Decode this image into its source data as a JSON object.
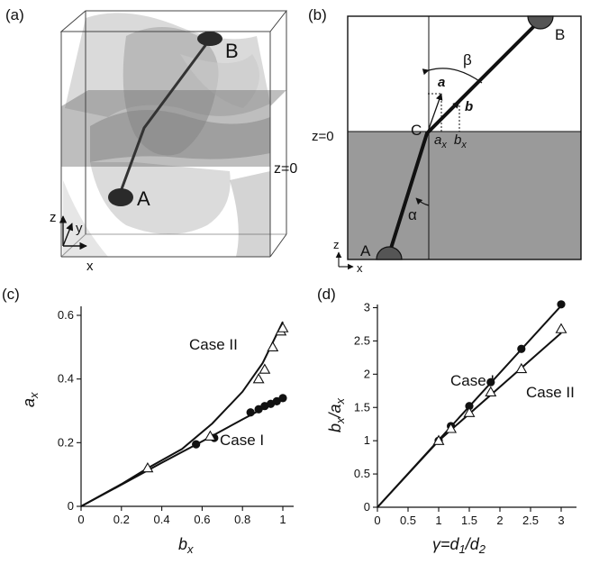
{
  "panels": {
    "a": {
      "label": "(a)",
      "point_a": "A",
      "point_b": "B",
      "plane_label": "z=0",
      "axis_z": "z",
      "axis_y": "y",
      "axis_x": "x"
    },
    "b": {
      "label": "(b)",
      "point_a": "A",
      "point_b": "B",
      "point_c": "C",
      "beta": "β",
      "alpha": "α",
      "vec_a": "a",
      "vec_b": "b",
      "ax_label": "a",
      "ax_sub": "x",
      "bx_label": "b",
      "bx_sub": "x",
      "plane_label": "z=0",
      "axis_z": "z",
      "axis_x": "x"
    },
    "c": {
      "label": "(c)",
      "case1": "Case I",
      "case2": "Case II",
      "ylabel_main": "a",
      "ylabel_sub": "x",
      "xlabel_main": "b",
      "xlabel_sub": "x"
    },
    "d": {
      "label": "(d)",
      "case1": "Case I",
      "case2": "Case II",
      "ylabel": "b",
      "ylabel_sub": "x",
      "ylabel_slash": "/a",
      "ylabel_sub2": "x",
      "xlabel": "γ=d",
      "xlabel_sub": "1",
      "xlabel_slash": "/d",
      "xlabel_sub2": "2"
    }
  },
  "chart_data": [
    {
      "type": "scatter",
      "panel": "(c)",
      "xlabel": "b_x",
      "ylabel": "a_x",
      "xlim": [
        0,
        1
      ],
      "ylim": [
        0,
        0.6
      ],
      "x_ticks": [
        "0",
        "0.2",
        "0.4",
        "0.6",
        "0.8",
        "1"
      ],
      "y_ticks": [
        "0",
        "0.2",
        "0.4",
        "0.6"
      ],
      "series": [
        {
          "name": "Case I",
          "marker": "filled-circle",
          "x": [
            0.57,
            0.66,
            0.84,
            0.88,
            0.91,
            0.94,
            0.97,
            1.0
          ],
          "y": [
            0.195,
            0.215,
            0.295,
            0.305,
            0.315,
            0.322,
            0.33,
            0.34
          ]
        },
        {
          "name": "Case II",
          "marker": "open-triangle",
          "x": [
            0.33,
            0.64,
            0.88,
            0.91,
            0.95,
            0.99,
            1.0
          ],
          "y": [
            0.12,
            0.22,
            0.4,
            0.43,
            0.5,
            0.55,
            0.56
          ]
        }
      ],
      "fits": [
        {
          "for": "Case I",
          "x": [
            0,
            0.2,
            0.4,
            0.6,
            0.8,
            1.0
          ],
          "y": [
            0,
            0.068,
            0.137,
            0.204,
            0.273,
            0.34
          ]
        },
        {
          "for": "Case II",
          "x": [
            0,
            0.2,
            0.33,
            0.5,
            0.65,
            0.8,
            0.9,
            1.0
          ],
          "y": [
            0,
            0.07,
            0.12,
            0.18,
            0.26,
            0.36,
            0.45,
            0.58
          ]
        }
      ]
    },
    {
      "type": "scatter",
      "panel": "(d)",
      "xlabel": "γ=d_1/d_2",
      "ylabel": "b_x/a_x",
      "xlim": [
        0,
        3
      ],
      "ylim": [
        0,
        3.2
      ],
      "x_ticks": [
        "0",
        "0.5",
        "1",
        "1.5",
        "2",
        "2.5",
        "3"
      ],
      "y_ticks": [
        "0",
        "0.5",
        "1",
        "1.5",
        "2",
        "2.5",
        "3"
      ],
      "series": [
        {
          "name": "Case I",
          "marker": "filled-circle",
          "x": [
            1.0,
            1.2,
            1.5,
            1.85,
            2.35,
            3.0
          ],
          "y": [
            1.0,
            1.22,
            1.52,
            1.88,
            2.38,
            3.05
          ]
        },
        {
          "name": "Case II",
          "marker": "open-triangle",
          "x": [
            1.0,
            1.2,
            1.5,
            1.85,
            2.35,
            3.0
          ],
          "y": [
            1.0,
            1.18,
            1.42,
            1.73,
            2.08,
            2.68
          ]
        }
      ],
      "fits": [
        {
          "for": "Case I",
          "x": [
            0,
            3.0
          ],
          "y": [
            0,
            3.03
          ]
        },
        {
          "for": "Case II",
          "x": [
            0,
            1.0,
            3.0
          ],
          "y": [
            0,
            1.0,
            2.62
          ]
        }
      ]
    }
  ]
}
